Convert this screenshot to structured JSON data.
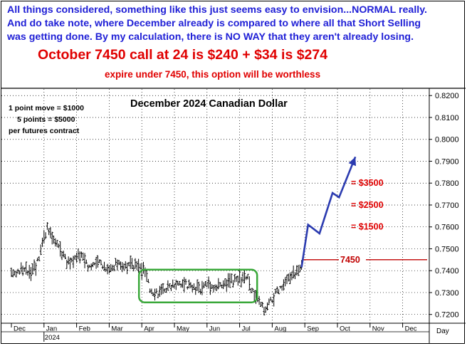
{
  "header": {
    "line1": "All things considered, something like this just seems easy to envision...NORMAL really.",
    "line2": "And do take note, where December already is compared to where all that Short Selling",
    "line3": "was getting done. By my calculation, there is NO WAY that they aren't already losing.",
    "headline": "October  7450 call at 24 is $240 + $34 is $274",
    "subline": "expire under 7450, this option will be worthless"
  },
  "colors": {
    "header_text": "#1f1fd6",
    "headline_text": "#e00000",
    "price_bars": "#000000",
    "range_box": "#3aa83a",
    "projection_arrow": "#2b3bb0",
    "target_labels": "#e00000",
    "strike_line": "#c00000"
  },
  "chart_data": {
    "type": "ohlc-bar",
    "title": "December 2024 Canadian Dollar",
    "note": [
      "1 point move = $1000",
      "5 points = $5000",
      "per futures contract"
    ],
    "x_axis": {
      "label": "Day",
      "months": [
        "Dec",
        "Jan",
        "Feb",
        "Mar",
        "Apr",
        "May",
        "Jun",
        "Jul",
        "Aug",
        "Sep",
        "Oct",
        "Nov",
        "Dec"
      ],
      "year_label": "2024"
    },
    "y_axis": {
      "ticks": [
        "0.7200",
        "0.7300",
        "0.7400",
        "0.7500",
        "0.7600",
        "0.7700",
        "0.7800",
        "0.7900",
        "0.8000",
        "0.8100",
        "0.8200"
      ],
      "range": [
        0.716,
        0.823
      ],
      "side": "right"
    },
    "price_path": [
      {
        "m": 0.0,
        "p": 0.7385
      },
      {
        "m": 0.3,
        "p": 0.7405
      },
      {
        "m": 0.55,
        "p": 0.7395
      },
      {
        "m": 0.8,
        "p": 0.744
      },
      {
        "m": 1.0,
        "p": 0.756
      },
      {
        "m": 1.12,
        "p": 0.7595
      },
      {
        "m": 1.3,
        "p": 0.7535
      },
      {
        "m": 1.5,
        "p": 0.75
      },
      {
        "m": 1.7,
        "p": 0.744
      },
      {
        "m": 1.9,
        "p": 0.745
      },
      {
        "m": 2.15,
        "p": 0.7475
      },
      {
        "m": 2.4,
        "p": 0.742
      },
      {
        "m": 2.7,
        "p": 0.744
      },
      {
        "m": 3.0,
        "p": 0.741
      },
      {
        "m": 3.3,
        "p": 0.743
      },
      {
        "m": 3.6,
        "p": 0.7425
      },
      {
        "m": 3.9,
        "p": 0.742
      },
      {
        "m": 4.1,
        "p": 0.739
      },
      {
        "m": 4.25,
        "p": 0.7315
      },
      {
        "m": 4.5,
        "p": 0.73
      },
      {
        "m": 4.8,
        "p": 0.7325
      },
      {
        "m": 5.1,
        "p": 0.735
      },
      {
        "m": 5.4,
        "p": 0.733
      },
      {
        "m": 5.7,
        "p": 0.731
      },
      {
        "m": 6.0,
        "p": 0.734
      },
      {
        "m": 6.3,
        "p": 0.7325
      },
      {
        "m": 6.6,
        "p": 0.7345
      },
      {
        "m": 6.9,
        "p": 0.7355
      },
      {
        "m": 7.1,
        "p": 0.737
      },
      {
        "m": 7.25,
        "p": 0.736
      },
      {
        "m": 7.4,
        "p": 0.73
      },
      {
        "m": 7.6,
        "p": 0.725
      },
      {
        "m": 7.8,
        "p": 0.7215
      },
      {
        "m": 7.95,
        "p": 0.726
      },
      {
        "m": 8.15,
        "p": 0.73
      },
      {
        "m": 8.35,
        "p": 0.733
      },
      {
        "m": 8.55,
        "p": 0.737
      },
      {
        "m": 8.75,
        "p": 0.7395
      },
      {
        "m": 8.9,
        "p": 0.7415
      }
    ],
    "projection": [
      {
        "m": 8.9,
        "p": 0.7415
      },
      {
        "m": 9.1,
        "p": 0.761
      },
      {
        "m": 9.45,
        "p": 0.757
      },
      {
        "m": 9.85,
        "p": 0.7755
      },
      {
        "m": 10.05,
        "p": 0.7735
      },
      {
        "m": 10.55,
        "p": 0.792
      }
    ],
    "range_box": {
      "m_start": 4.0,
      "m_end": 7.45,
      "p_low": 0.7265,
      "p_high": 0.7395
    },
    "strike": {
      "label": "7450",
      "price": 0.745,
      "m_start": 8.95
    },
    "targets": [
      {
        "label": "= $3500",
        "price": 0.78
      },
      {
        "label": "= $2500",
        "price": 0.77
      },
      {
        "label": "= $1500",
        "price": 0.76
      }
    ]
  }
}
